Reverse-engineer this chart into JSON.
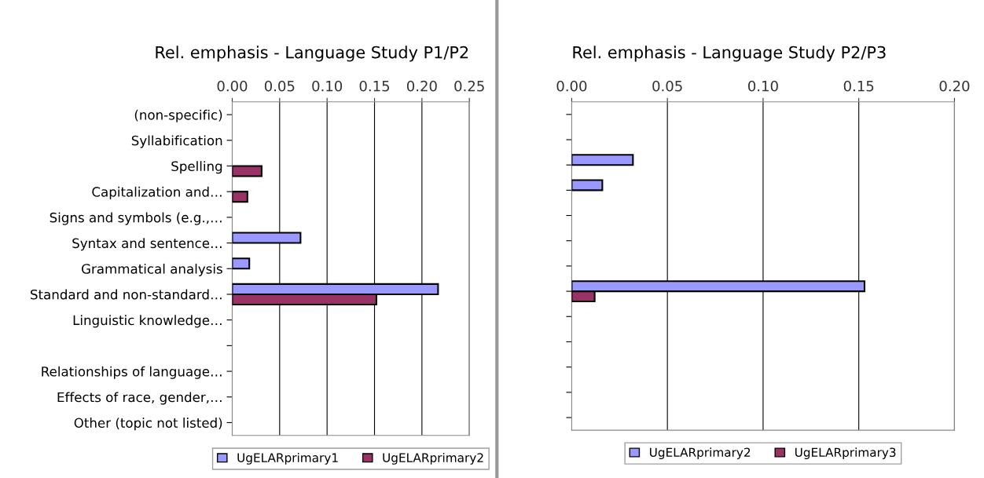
{
  "chart_data": [
    {
      "type": "bar",
      "orientation": "horizontal",
      "title": "Rel. emphasis - Language Study P1/P2",
      "categories": [
        "(non-specific)",
        "Syllabification",
        "Spelling",
        "Capitalization and…",
        "Signs and symbols (e.g.,…",
        "Syntax and sentence…",
        "Grammatical analysis",
        "Standard and non-standard…",
        "Linguistic knowledge…",
        null,
        "Relationships of language…",
        "Effects of race, gender,…",
        "Other (topic not listed)"
      ],
      "series": [
        {
          "name": "UgELARprimary1",
          "color": "#9999ff",
          "values": [
            null,
            null,
            null,
            null,
            null,
            0.072,
            0.018,
            0.217,
            null,
            null,
            null,
            null,
            null
          ]
        },
        {
          "name": "UgELARprimary2",
          "color": "#993366",
          "values": [
            null,
            null,
            0.031,
            0.016,
            null,
            null,
            null,
            0.152,
            null,
            null,
            null,
            null,
            null
          ]
        }
      ],
      "xlim": [
        0,
        0.25
      ],
      "xticks": [
        {
          "value": 0,
          "label": "0.00"
        },
        {
          "value": 0.05,
          "label": "0.05"
        },
        {
          "value": 0.1,
          "label": "0.10"
        },
        {
          "value": 0.15,
          "label": "0.15"
        },
        {
          "value": 0.2,
          "label": "0.20"
        },
        {
          "value": 0.25,
          "label": "0.25"
        }
      ],
      "grid": "x",
      "legend": "bottom"
    },
    {
      "type": "bar",
      "orientation": "horizontal",
      "title": "Rel. emphasis - Language Study P2/P3",
      "categories": [
        null,
        null,
        null,
        null,
        null,
        null,
        null,
        null,
        null,
        null,
        null,
        null,
        null
      ],
      "series": [
        {
          "name": "UgELARprimary2",
          "color": "#9999ff",
          "values": [
            null,
            null,
            0.032,
            0.016,
            null,
            null,
            null,
            0.153,
            null,
            null,
            null,
            null,
            null
          ]
        },
        {
          "name": "UgELARprimary3",
          "color": "#993366",
          "values": [
            null,
            null,
            null,
            null,
            null,
            null,
            null,
            0.012,
            null,
            null,
            null,
            null,
            null
          ]
        }
      ],
      "xlim": [
        0,
        0.2
      ],
      "xticks": [
        {
          "value": 0,
          "label": "0.00"
        },
        {
          "value": 0.05,
          "label": "0.05"
        },
        {
          "value": 0.1,
          "label": "0.10"
        },
        {
          "value": 0.15,
          "label": "0.15"
        },
        {
          "value": 0.2,
          "label": "0.20"
        }
      ],
      "grid": "x",
      "legend": "bottom"
    }
  ]
}
